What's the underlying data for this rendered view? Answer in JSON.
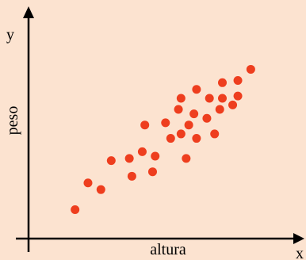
{
  "colors": {
    "background": "#fce3d0",
    "points": "#ee3e1e",
    "axes": "#000000"
  },
  "chart_data": {
    "type": "scatter",
    "title": "",
    "xlabel": "altura",
    "ylabel": "peso",
    "x_axis_letter": "x",
    "y_axis_letter": "y",
    "grid": false,
    "legend": "none",
    "xlim": [
      0,
      100
    ],
    "ylim": [
      0,
      100
    ],
    "points": [
      {
        "x": 18,
        "y": 13
      },
      {
        "x": 23,
        "y": 25
      },
      {
        "x": 28,
        "y": 22
      },
      {
        "x": 32,
        "y": 35
      },
      {
        "x": 39,
        "y": 36
      },
      {
        "x": 40,
        "y": 28
      },
      {
        "x": 44,
        "y": 39
      },
      {
        "x": 45,
        "y": 51
      },
      {
        "x": 48,
        "y": 30
      },
      {
        "x": 49,
        "y": 37
      },
      {
        "x": 53,
        "y": 52
      },
      {
        "x": 55,
        "y": 45
      },
      {
        "x": 58,
        "y": 58
      },
      {
        "x": 59,
        "y": 47
      },
      {
        "x": 59,
        "y": 63
      },
      {
        "x": 61,
        "y": 36
      },
      {
        "x": 62,
        "y": 51
      },
      {
        "x": 64,
        "y": 56
      },
      {
        "x": 65,
        "y": 45
      },
      {
        "x": 65,
        "y": 67
      },
      {
        "x": 69,
        "y": 54
      },
      {
        "x": 70,
        "y": 63
      },
      {
        "x": 72,
        "y": 47
      },
      {
        "x": 74,
        "y": 58
      },
      {
        "x": 75,
        "y": 63
      },
      {
        "x": 75,
        "y": 70
      },
      {
        "x": 79,
        "y": 60
      },
      {
        "x": 81,
        "y": 64
      },
      {
        "x": 81,
        "y": 71
      },
      {
        "x": 86,
        "y": 76
      }
    ]
  }
}
